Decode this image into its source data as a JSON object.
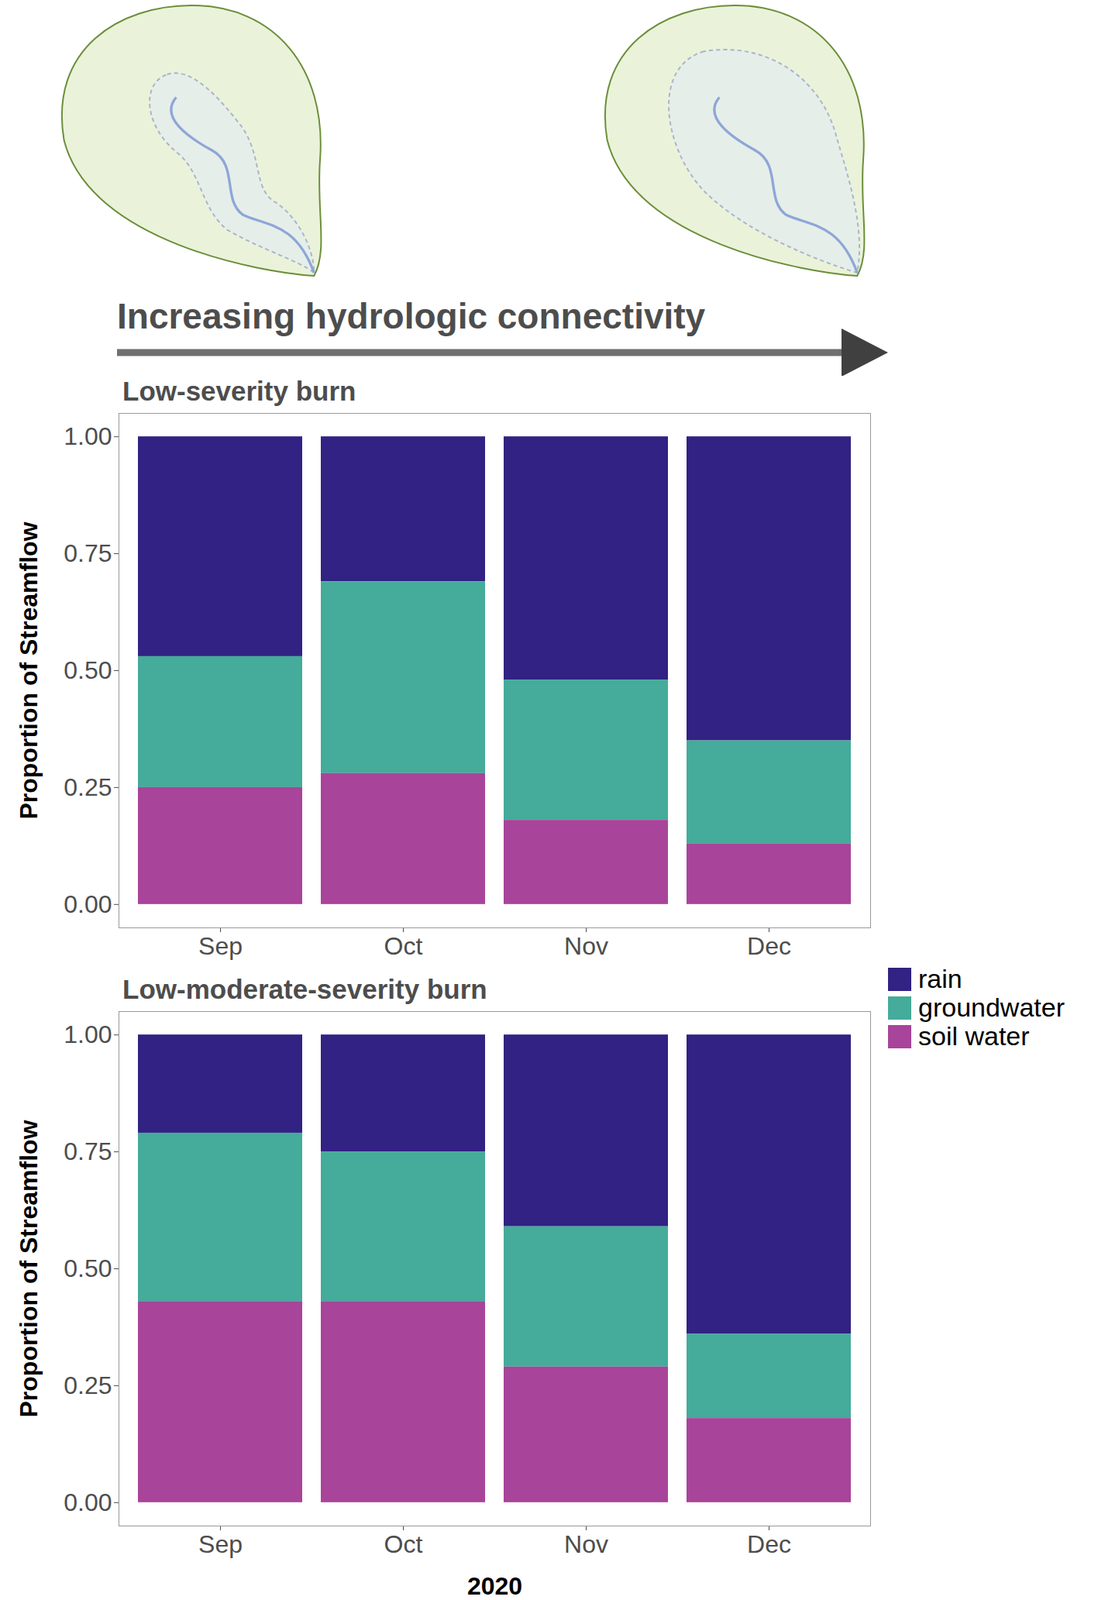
{
  "diagram": {
    "arrow_label": "Increasing hydrologic connectivity"
  },
  "chart_data": [
    {
      "type": "bar",
      "stacked": true,
      "title": "Low-severity burn",
      "y_label": "Proportion of Streamflow",
      "categories": [
        "Sep",
        "Oct",
        "Nov",
        "Dec"
      ],
      "series": [
        {
          "name": "rain",
          "color": "#312283",
          "values": [
            0.47,
            0.31,
            0.52,
            0.65
          ]
        },
        {
          "name": "groundwater",
          "color": "#45ab9a",
          "values": [
            0.28,
            0.41,
            0.3,
            0.22
          ]
        },
        {
          "name": "soil water",
          "color": "#a8449a",
          "values": [
            0.25,
            0.28,
            0.18,
            0.13
          ]
        }
      ],
      "ylim": [
        -0.05,
        1.05
      ],
      "yticks": [
        {
          "value": 0,
          "label": "0.00"
        },
        {
          "value": 0.25,
          "label": "0.25"
        },
        {
          "value": 0.5,
          "label": "0.50"
        },
        {
          "value": 0.75,
          "label": "0.75"
        },
        {
          "value": 1,
          "label": "1.00"
        }
      ]
    },
    {
      "type": "bar",
      "stacked": true,
      "title": "Low-moderate-severity burn",
      "y_label": "Proportion of Streamflow",
      "x_label": "2020",
      "legend": "right",
      "categories": [
        "Sep",
        "Oct",
        "Nov",
        "Dec"
      ],
      "series": [
        {
          "name": "rain",
          "color": "#312283",
          "values": [
            0.21,
            0.25,
            0.41,
            0.64
          ]
        },
        {
          "name": "groundwater",
          "color": "#45ab9a",
          "values": [
            0.36,
            0.32,
            0.3,
            0.18
          ]
        },
        {
          "name": "soil water",
          "color": "#a8449a",
          "values": [
            0.43,
            0.43,
            0.29,
            0.18
          ]
        }
      ],
      "ylim": [
        -0.05,
        1.05
      ],
      "yticks": [
        {
          "value": 0,
          "label": "0.00"
        },
        {
          "value": 0.25,
          "label": "0.25"
        },
        {
          "value": 0.5,
          "label": "0.50"
        },
        {
          "value": 0.75,
          "label": "0.75"
        },
        {
          "value": 1,
          "label": "1.00"
        }
      ]
    }
  ]
}
